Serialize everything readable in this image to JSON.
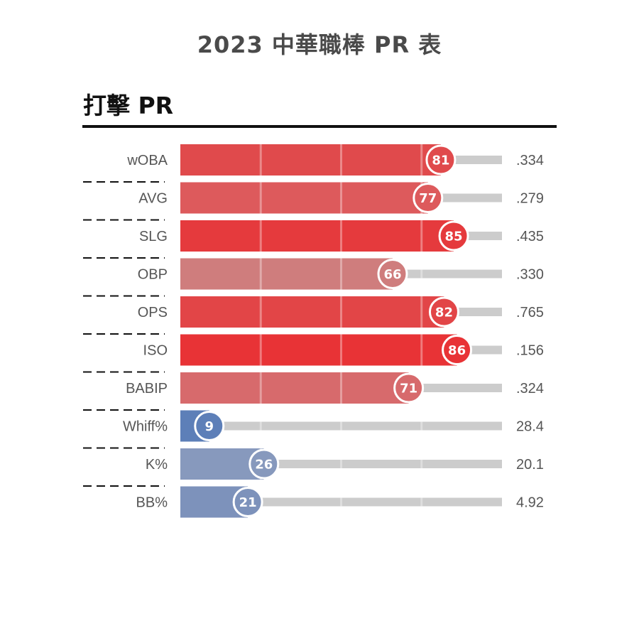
{
  "title": "2023 中華職棒 PR 表",
  "section": {
    "title": "打擊 PR"
  },
  "chart_data": {
    "type": "bar",
    "orientation": "horizontal",
    "title": "2023 中華職棒 PR 表",
    "subtitle": "打擊 PR",
    "xlim": [
      0,
      100
    ],
    "categories": [
      "wOBA",
      "AVG",
      "SLG",
      "OBP",
      "OPS",
      "ISO",
      "BABIP",
      "Whiff%",
      "K%",
      "BB%"
    ],
    "values": [
      81,
      77,
      85,
      66,
      82,
      86,
      71,
      9,
      26,
      21
    ],
    "stat_values": [
      ".334",
      ".279",
      ".435",
      ".330",
      ".765",
      ".156",
      ".324",
      "28.4",
      "20.1",
      "4.92"
    ],
    "colors": [
      "#e04a4c",
      "#dd5a5c",
      "#e53a3d",
      "#cf7d7d",
      "#e24547",
      "#e83336",
      "#d76a6c",
      "#5d7fb8",
      "#8799bd",
      "#7d92bb"
    ],
    "track_color": "#cccccc",
    "gridlines_at": [
      25,
      50,
      75
    ]
  }
}
